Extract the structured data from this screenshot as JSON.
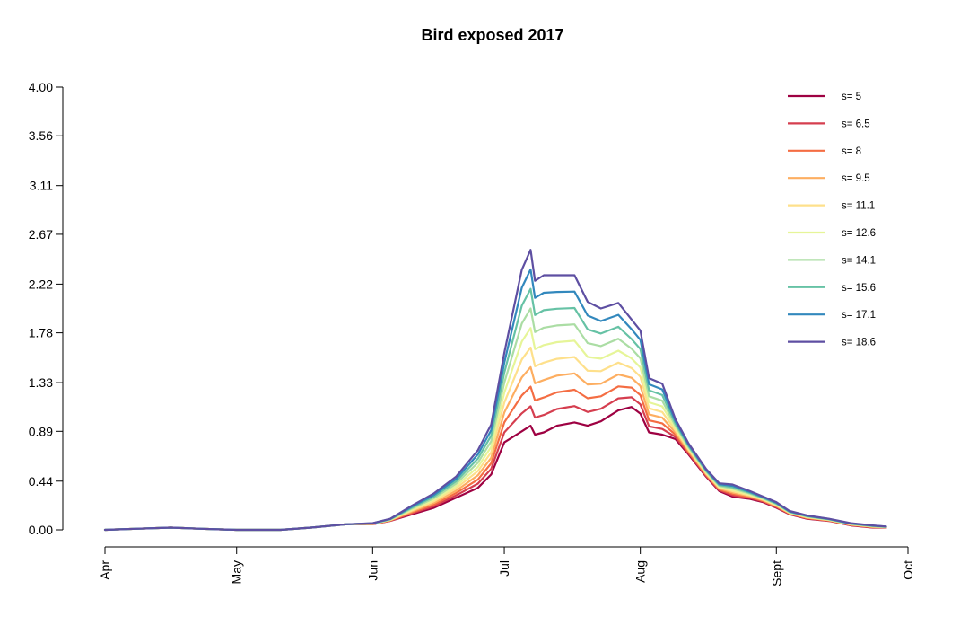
{
  "chart_data": {
    "type": "line",
    "title": "Bird exposed 2017",
    "xlabel": "",
    "ylabel": "",
    "xlim": [
      0,
      183
    ],
    "ylim": [
      0,
      4
    ],
    "y_ticks": [
      "0.00",
      "0.44",
      "0.89",
      "1.33",
      "1.78",
      "2.22",
      "2.67",
      "3.11",
      "3.56",
      "4.00"
    ],
    "x_ticks": [
      {
        "label": "Apr",
        "day": 0
      },
      {
        "label": "May",
        "day": 30
      },
      {
        "label": "Jun",
        "day": 61
      },
      {
        "label": "Jul",
        "day": 91
      },
      {
        "label": "Aug",
        "day": 122
      },
      {
        "label": "Sept",
        "day": 153
      },
      {
        "label": "Oct",
        "day": 183
      }
    ],
    "grid": false,
    "legend_position": "top-right",
    "series": [
      {
        "name": "s= 5",
        "color": "#9e0142"
      },
      {
        "name": "s= 6.5",
        "color": "#d53e4f"
      },
      {
        "name": "s= 8",
        "color": "#f46d43"
      },
      {
        "name": "s= 9.5",
        "color": "#fdae61"
      },
      {
        "name": "s= 11.1",
        "color": "#fee08b"
      },
      {
        "name": "s= 12.6",
        "color": "#e6f598"
      },
      {
        "name": "s= 14.1",
        "color": "#abdda4"
      },
      {
        "name": "s= 15.6",
        "color": "#66c2a5"
      },
      {
        "name": "s= 17.1",
        "color": "#3288bd"
      },
      {
        "name": "s= 18.6",
        "color": "#5e4fa2"
      }
    ],
    "x_days": [
      0,
      7,
      15,
      22,
      30,
      40,
      47,
      55,
      61,
      65,
      70,
      75,
      80,
      85,
      88,
      91,
      95,
      97,
      98,
      100,
      103,
      107,
      110,
      113,
      117,
      120,
      122,
      124,
      127,
      130,
      133,
      137,
      140,
      143,
      147,
      150,
      153,
      156,
      160,
      165,
      170,
      175,
      178
    ],
    "series_low": [
      0.0,
      0.01,
      0.02,
      0.01,
      0.0,
      0.0,
      0.02,
      0.05,
      0.05,
      0.08,
      0.14,
      0.2,
      0.29,
      0.38,
      0.5,
      0.79,
      0.89,
      0.94,
      0.86,
      0.88,
      0.94,
      0.97,
      0.94,
      0.98,
      1.08,
      1.11,
      1.05,
      0.88,
      0.86,
      0.82,
      0.68,
      0.48,
      0.35,
      0.3,
      0.28,
      0.25,
      0.2,
      0.14,
      0.1,
      0.08,
      0.04,
      0.02,
      0.02
    ],
    "series_high": [
      0.0,
      0.01,
      0.02,
      0.01,
      0.0,
      0.0,
      0.02,
      0.05,
      0.06,
      0.1,
      0.22,
      0.33,
      0.48,
      0.72,
      0.95,
      1.6,
      2.35,
      2.53,
      2.25,
      2.3,
      2.3,
      2.3,
      2.06,
      2.0,
      2.05,
      1.9,
      1.8,
      1.37,
      1.32,
      1.0,
      0.78,
      0.55,
      0.42,
      0.41,
      0.35,
      0.3,
      0.25,
      0.17,
      0.13,
      0.1,
      0.06,
      0.04,
      0.03
    ]
  }
}
